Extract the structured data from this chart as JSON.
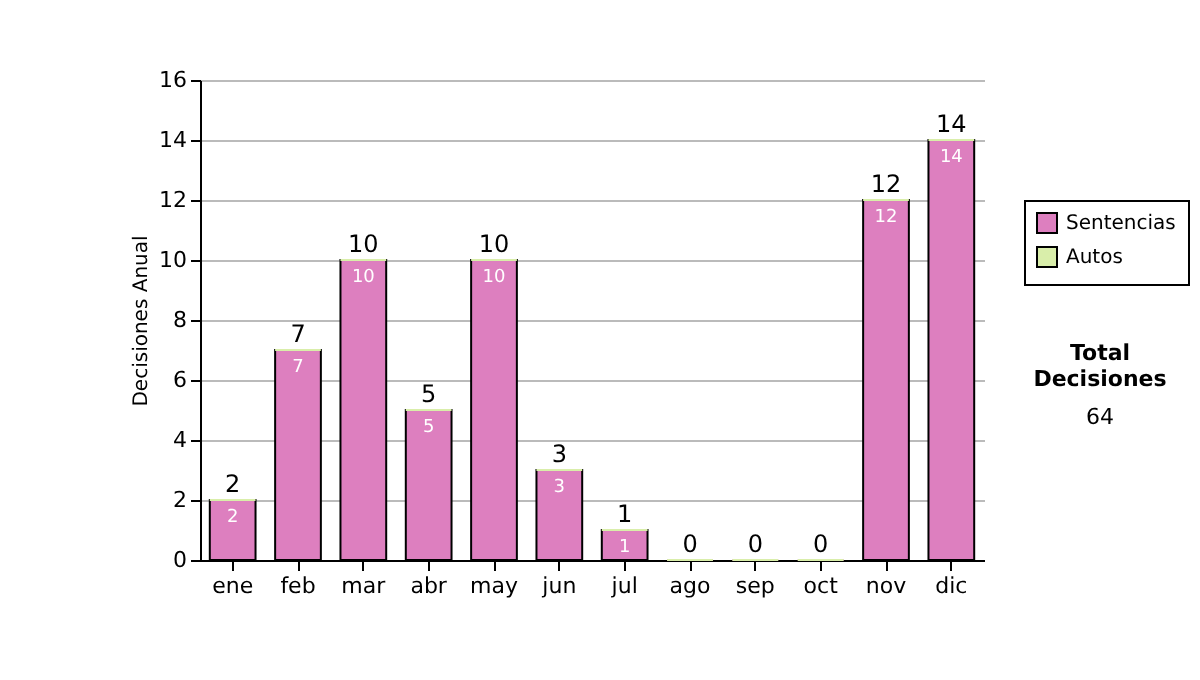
{
  "chart_data": {
    "type": "bar",
    "ylabel": "Decisiones Anual",
    "categories": [
      "ene",
      "feb",
      "mar",
      "abr",
      "may",
      "jun",
      "jul",
      "ago",
      "sep",
      "oct",
      "nov",
      "dic"
    ],
    "series": [
      {
        "name": "Sentencias",
        "color": "#dd7fbf",
        "values": [
          2,
          7,
          10,
          5,
          10,
          3,
          1,
          0,
          0,
          0,
          12,
          14
        ],
        "value_labels": [
          "2",
          "7",
          "10",
          "5",
          "10",
          "3",
          "1",
          null,
          null,
          null,
          "12",
          "14"
        ]
      },
      {
        "name": "Autos",
        "color": "#d9eeaa",
        "values": [
          0,
          0,
          0,
          0,
          0,
          0,
          0,
          0,
          0,
          0,
          0,
          0
        ]
      }
    ],
    "stacked": true,
    "totals": [
      "2",
      "7",
      "10",
      "5",
      "10",
      "3",
      "1",
      "0",
      "0",
      "0",
      "12",
      "14"
    ],
    "ylim": [
      0,
      16
    ],
    "yticks": [
      0,
      2,
      4,
      6,
      8,
      10,
      12,
      14,
      16
    ],
    "grid": "y",
    "legend": "right",
    "annotations": [
      "Total Decisiones",
      "64"
    ]
  }
}
